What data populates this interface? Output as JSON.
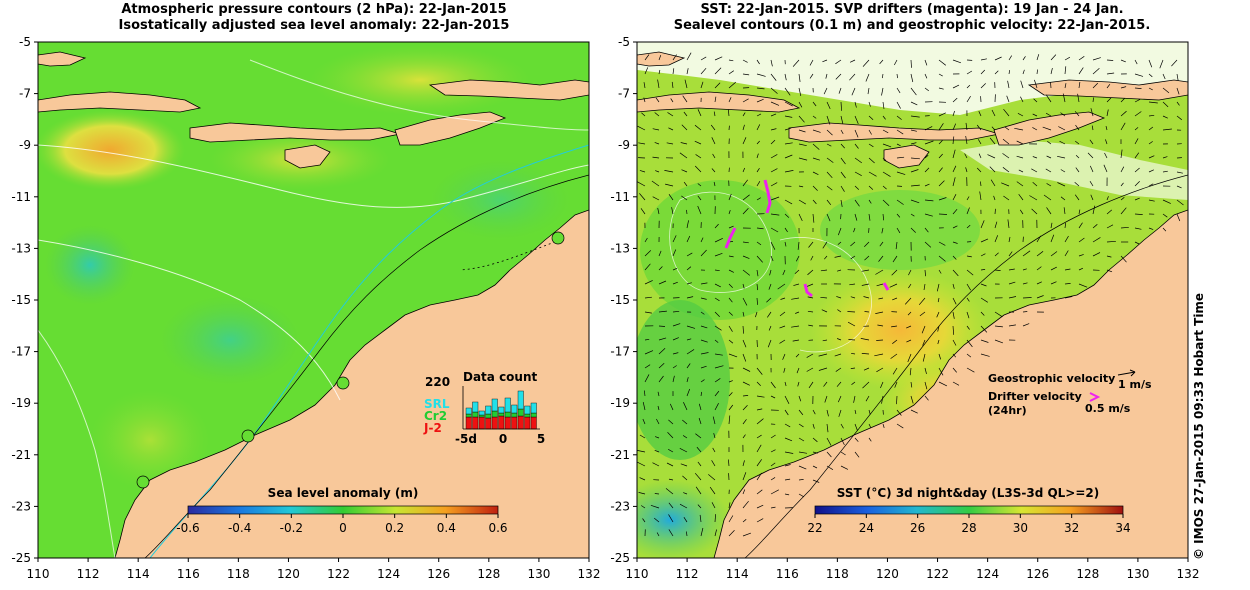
{
  "left_panel": {
    "title_line1": "Atmospheric pressure contours (2 hPa): 22-Jan-2015",
    "title_line2": "Isostatically adjusted sea level anomaly: 22-Jan-2015",
    "colorbar": {
      "title": "Sea level anomaly (m)",
      "min": -0.6,
      "max": 0.6,
      "labels": [
        "-0.6",
        "-0.4",
        "-0.2",
        "0",
        "0.2",
        "0.4",
        "0.6"
      ]
    },
    "data_count": {
      "title": "Data count",
      "max_label": "220",
      "series": [
        {
          "name": "SRL",
          "color": "#22e0e8"
        },
        {
          "name": "Cr2",
          "color": "#22cc33"
        },
        {
          "name": "J-2",
          "color": "#ee1111"
        }
      ],
      "x_labels": [
        "-5d",
        "0",
        "5"
      ]
    }
  },
  "right_panel": {
    "title_line1": "SST: 22-Jan-2015. SVP drifters (magenta): 19 Jan - 24 Jan.",
    "title_line2": "Sealevel contours (0.1 m) and geostrophic velocity: 22-Jan-2015.",
    "colorbar": {
      "title": "SST (°C) 3d night&day (L3S-3d QL>=2)",
      "min": 22,
      "max": 34,
      "labels": [
        "22",
        "24",
        "26",
        "28",
        "30",
        "32",
        "34"
      ]
    },
    "velocity_legend": {
      "geostrophic": "Geostrophic velocity",
      "geostrophic_scale": "1 m/s",
      "drifter": "Drifter velocity",
      "drifter_sub": "(24hr)",
      "drifter_scale": "0.5 m/s"
    }
  },
  "axes": {
    "lon_ticks": [
      "110",
      "112",
      "114",
      "116",
      "118",
      "120",
      "122",
      "124",
      "126",
      "128",
      "130",
      "132"
    ],
    "lat_ticks": [
      "-5",
      "-7",
      "-9",
      "-11",
      "-13",
      "-15",
      "-17",
      "-19",
      "-21",
      "-23",
      "-25"
    ],
    "lon_range": [
      110,
      132
    ],
    "lat_range": [
      -25,
      -5
    ]
  },
  "credit": "© IMOS 27-Jan-2015 09:33 Hobart Time",
  "colors": {
    "land": "#f8c89a",
    "ocean_green": "#66dd33",
    "sst_yellow": "#c8e632"
  }
}
